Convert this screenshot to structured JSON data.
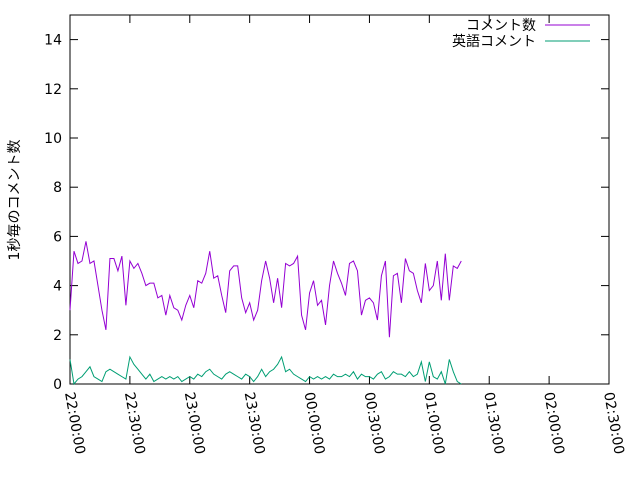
{
  "chart_data": {
    "type": "line",
    "title": "",
    "xlabel": "",
    "ylabel": "1秒毎のコメント数",
    "ylim": [
      0,
      15
    ],
    "xlim": [
      "22:00:00",
      "02:30:00"
    ],
    "x_ticks": [
      "22:00:00",
      "22:30:00",
      "23:00:00",
      "23:30:00",
      "00:00:00",
      "00:30:00",
      "01:00:00",
      "01:30:00",
      "02:00:00",
      "02:30:00"
    ],
    "y_ticks": [
      0,
      2,
      4,
      6,
      8,
      10,
      12,
      14
    ],
    "y_tick_labels": [
      "0",
      "2",
      "4",
      "6",
      "8",
      "10",
      "12",
      "14"
    ],
    "grid": false,
    "legend_position": "top-right",
    "series": [
      {
        "name": "コメント数",
        "color": "#9400d3",
        "points": [
          [
            "22:00:00",
            3.0
          ],
          [
            "22:02:00",
            5.4
          ],
          [
            "22:04:00",
            4.9
          ],
          [
            "22:06:00",
            5.0
          ],
          [
            "22:08:00",
            5.8
          ],
          [
            "22:10:00",
            4.9
          ],
          [
            "22:12:00",
            5.0
          ],
          [
            "22:14:00",
            4.0
          ],
          [
            "22:16:00",
            3.0
          ],
          [
            "22:18:00",
            2.2
          ],
          [
            "22:20:00",
            5.1
          ],
          [
            "22:22:00",
            5.1
          ],
          [
            "22:24:00",
            4.6
          ],
          [
            "22:26:00",
            5.2
          ],
          [
            "22:28:00",
            3.2
          ],
          [
            "22:30:00",
            5.0
          ],
          [
            "22:32:00",
            4.7
          ],
          [
            "22:34:00",
            4.9
          ],
          [
            "22:36:00",
            4.5
          ],
          [
            "22:38:00",
            4.0
          ],
          [
            "22:40:00",
            4.1
          ],
          [
            "22:42:00",
            4.1
          ],
          [
            "22:44:00",
            3.5
          ],
          [
            "22:46:00",
            3.6
          ],
          [
            "22:48:00",
            2.8
          ],
          [
            "22:50:00",
            3.6
          ],
          [
            "22:52:00",
            3.1
          ],
          [
            "22:54:00",
            3.0
          ],
          [
            "22:56:00",
            2.6
          ],
          [
            "22:58:00",
            3.2
          ],
          [
            "23:00:00",
            3.6
          ],
          [
            "23:02:00",
            3.1
          ],
          [
            "23:04:00",
            4.2
          ],
          [
            "23:06:00",
            4.1
          ],
          [
            "23:08:00",
            4.5
          ],
          [
            "23:10:00",
            5.4
          ],
          [
            "23:12:00",
            4.3
          ],
          [
            "23:14:00",
            4.4
          ],
          [
            "23:16:00",
            3.6
          ],
          [
            "23:18:00",
            2.9
          ],
          [
            "23:20:00",
            4.6
          ],
          [
            "23:22:00",
            4.8
          ],
          [
            "23:24:00",
            4.8
          ],
          [
            "23:26:00",
            3.5
          ],
          [
            "23:28:00",
            2.9
          ],
          [
            "23:30:00",
            3.3
          ],
          [
            "23:32:00",
            2.6
          ],
          [
            "23:34:00",
            3.0
          ],
          [
            "23:36:00",
            4.2
          ],
          [
            "23:38:00",
            5.0
          ],
          [
            "23:40:00",
            4.3
          ],
          [
            "23:42:00",
            3.3
          ],
          [
            "23:44:00",
            4.3
          ],
          [
            "23:46:00",
            3.1
          ],
          [
            "23:48:00",
            4.9
          ],
          [
            "23:50:00",
            4.8
          ],
          [
            "23:52:00",
            4.9
          ],
          [
            "23:54:00",
            5.2
          ],
          [
            "23:56:00",
            2.8
          ],
          [
            "23:58:00",
            2.2
          ],
          [
            "00:00:00",
            3.7
          ],
          [
            "00:02:00",
            4.2
          ],
          [
            "00:04:00",
            3.2
          ],
          [
            "00:06:00",
            3.4
          ],
          [
            "00:08:00",
            2.4
          ],
          [
            "00:10:00",
            4.0
          ],
          [
            "00:12:00",
            5.0
          ],
          [
            "00:14:00",
            4.5
          ],
          [
            "00:16:00",
            4.1
          ],
          [
            "00:18:00",
            3.6
          ],
          [
            "00:20:00",
            4.9
          ],
          [
            "00:22:00",
            5.0
          ],
          [
            "00:24:00",
            4.6
          ],
          [
            "00:26:00",
            2.8
          ],
          [
            "00:28:00",
            3.4
          ],
          [
            "00:30:00",
            3.5
          ],
          [
            "00:32:00",
            3.3
          ],
          [
            "00:34:00",
            2.6
          ],
          [
            "00:36:00",
            4.4
          ],
          [
            "00:38:00",
            5.0
          ],
          [
            "00:40:00",
            1.9
          ],
          [
            "00:42:00",
            4.4
          ],
          [
            "00:44:00",
            4.5
          ],
          [
            "00:46:00",
            3.3
          ],
          [
            "00:48:00",
            5.1
          ],
          [
            "00:50:00",
            4.6
          ],
          [
            "00:52:00",
            4.5
          ],
          [
            "00:54:00",
            3.8
          ],
          [
            "00:56:00",
            3.3
          ],
          [
            "00:58:00",
            4.9
          ],
          [
            "01:00:00",
            3.8
          ],
          [
            "01:02:00",
            4.0
          ],
          [
            "01:04:00",
            5.0
          ],
          [
            "01:06:00",
            3.4
          ],
          [
            "01:08:00",
            5.3
          ],
          [
            "01:10:00",
            3.4
          ],
          [
            "01:12:00",
            4.8
          ],
          [
            "01:14:00",
            4.7
          ],
          [
            "01:16:00",
            5.0
          ]
        ]
      },
      {
        "name": "英語コメント",
        "color": "#009e73",
        "points": [
          [
            "22:00:00",
            1.0
          ],
          [
            "22:02:00",
            0.0
          ],
          [
            "22:04:00",
            0.2
          ],
          [
            "22:06:00",
            0.3
          ],
          [
            "22:08:00",
            0.5
          ],
          [
            "22:10:00",
            0.7
          ],
          [
            "22:12:00",
            0.3
          ],
          [
            "22:14:00",
            0.2
          ],
          [
            "22:16:00",
            0.1
          ],
          [
            "22:18:00",
            0.5
          ],
          [
            "22:20:00",
            0.6
          ],
          [
            "22:22:00",
            0.5
          ],
          [
            "22:24:00",
            0.4
          ],
          [
            "22:26:00",
            0.3
          ],
          [
            "22:28:00",
            0.2
          ],
          [
            "22:30:00",
            1.1
          ],
          [
            "22:32:00",
            0.8
          ],
          [
            "22:34:00",
            0.6
          ],
          [
            "22:36:00",
            0.4
          ],
          [
            "22:38:00",
            0.2
          ],
          [
            "22:40:00",
            0.4
          ],
          [
            "22:42:00",
            0.1
          ],
          [
            "22:44:00",
            0.2
          ],
          [
            "22:46:00",
            0.3
          ],
          [
            "22:48:00",
            0.2
          ],
          [
            "22:50:00",
            0.3
          ],
          [
            "22:52:00",
            0.2
          ],
          [
            "22:54:00",
            0.3
          ],
          [
            "22:56:00",
            0.1
          ],
          [
            "22:58:00",
            0.2
          ],
          [
            "23:00:00",
            0.3
          ],
          [
            "23:02:00",
            0.2
          ],
          [
            "23:04:00",
            0.4
          ],
          [
            "23:06:00",
            0.3
          ],
          [
            "23:08:00",
            0.5
          ],
          [
            "23:10:00",
            0.6
          ],
          [
            "23:12:00",
            0.4
          ],
          [
            "23:14:00",
            0.3
          ],
          [
            "23:16:00",
            0.2
          ],
          [
            "23:18:00",
            0.4
          ],
          [
            "23:20:00",
            0.5
          ],
          [
            "23:22:00",
            0.4
          ],
          [
            "23:24:00",
            0.3
          ],
          [
            "23:26:00",
            0.2
          ],
          [
            "23:28:00",
            0.4
          ],
          [
            "23:30:00",
            0.3
          ],
          [
            "23:32:00",
            0.1
          ],
          [
            "23:34:00",
            0.3
          ],
          [
            "23:36:00",
            0.6
          ],
          [
            "23:38:00",
            0.3
          ],
          [
            "23:40:00",
            0.5
          ],
          [
            "23:42:00",
            0.6
          ],
          [
            "23:44:00",
            0.8
          ],
          [
            "23:46:00",
            1.1
          ],
          [
            "23:48:00",
            0.5
          ],
          [
            "23:50:00",
            0.6
          ],
          [
            "23:52:00",
            0.4
          ],
          [
            "23:54:00",
            0.3
          ],
          [
            "23:56:00",
            0.2
          ],
          [
            "23:58:00",
            0.1
          ],
          [
            "00:00:00",
            0.3
          ],
          [
            "00:02:00",
            0.2
          ],
          [
            "00:04:00",
            0.3
          ],
          [
            "00:06:00",
            0.2
          ],
          [
            "00:08:00",
            0.3
          ],
          [
            "00:10:00",
            0.2
          ],
          [
            "00:12:00",
            0.4
          ],
          [
            "00:14:00",
            0.3
          ],
          [
            "00:16:00",
            0.3
          ],
          [
            "00:18:00",
            0.4
          ],
          [
            "00:20:00",
            0.3
          ],
          [
            "00:22:00",
            0.5
          ],
          [
            "00:24:00",
            0.2
          ],
          [
            "00:26:00",
            0.4
          ],
          [
            "00:28:00",
            0.3
          ],
          [
            "00:30:00",
            0.3
          ],
          [
            "00:32:00",
            0.2
          ],
          [
            "00:34:00",
            0.4
          ],
          [
            "00:36:00",
            0.5
          ],
          [
            "00:38:00",
            0.2
          ],
          [
            "00:40:00",
            0.3
          ],
          [
            "00:42:00",
            0.5
          ],
          [
            "00:44:00",
            0.4
          ],
          [
            "00:46:00",
            0.4
          ],
          [
            "00:48:00",
            0.3
          ],
          [
            "00:50:00",
            0.5
          ],
          [
            "00:52:00",
            0.3
          ],
          [
            "00:54:00",
            0.4
          ],
          [
            "00:56:00",
            0.9
          ],
          [
            "00:58:00",
            0.1
          ],
          [
            "01:00:00",
            0.9
          ],
          [
            "01:02:00",
            0.3
          ],
          [
            "01:04:00",
            0.2
          ],
          [
            "01:06:00",
            0.5
          ],
          [
            "01:08:00",
            0.0
          ],
          [
            "01:10:00",
            1.0
          ],
          [
            "01:12:00",
            0.5
          ],
          [
            "01:14:00",
            0.1
          ],
          [
            "01:16:00",
            0.0
          ]
        ]
      }
    ]
  }
}
